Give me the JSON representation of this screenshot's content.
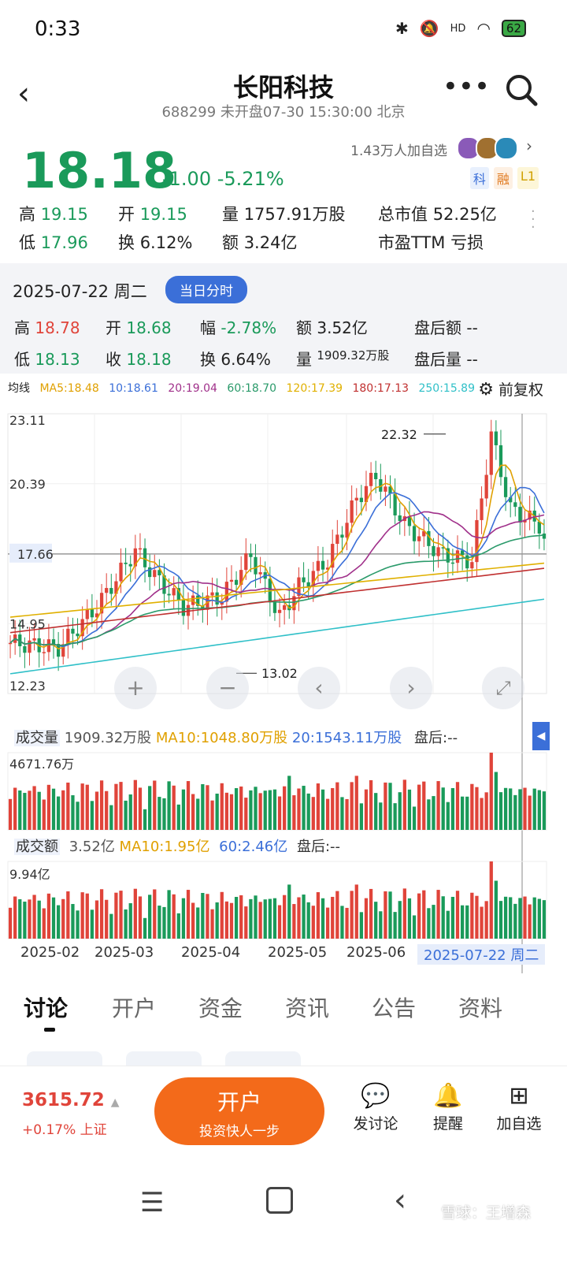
{
  "status_bar": {
    "time": "0:33",
    "battery": "62",
    "network": "HD"
  },
  "header": {
    "title": "长阳科技",
    "subtitle": "688299 未开盘07-30 15:30:00 北京"
  },
  "quote": {
    "price": "18.18",
    "change": "-1.00",
    "change_pct": "-5.21%",
    "watchers": "1.43万人加自选",
    "tags": [
      "科",
      "融",
      "L1"
    ],
    "stats": {
      "high_label": "高",
      "high": "19.15",
      "open_label": "开",
      "open": "19.15",
      "vol_label": "量",
      "vol": "1757.91万股",
      "mcap_label": "总市值",
      "mcap": "52.25亿",
      "low_label": "低",
      "low": "17.96",
      "turnover_label": "换",
      "turnover": "6.12%",
      "amount_label": "额",
      "amount": "3.24亿",
      "pe_label": "市盈TTM",
      "pe": "亏损"
    }
  },
  "day_detail": {
    "date": "2025-07-22 周二",
    "pill": "当日分时",
    "high_label": "高",
    "high": "18.78",
    "open_label": "开",
    "open": "18.68",
    "amp_label": "幅",
    "amp": "-2.78%",
    "amount_label": "额",
    "amount": "3.52亿",
    "ah_amount_label": "盘后额",
    "ah_amount": "--",
    "low_label": "低",
    "low": "18.13",
    "close_label": "收",
    "close": "18.18",
    "turnover_label": "换",
    "turnover": "6.64%",
    "vol_label": "量",
    "vol": "1909.32万股",
    "ah_vol_label": "盘后量",
    "ah_vol": "--"
  },
  "ma_legend": {
    "label": "均线",
    "items": [
      "MA5:18.48",
      "10:18.61",
      "20:19.04",
      "60:18.70",
      "120:17.39",
      "180:17.13",
      "250:15.89"
    ],
    "colors": [
      "#e0a000",
      "#3b6fd8",
      "#a0308a",
      "#2a9a6a",
      "#e0b000",
      "#c03030",
      "#30c0c8"
    ],
    "adjust_button": "前复权"
  },
  "chart_data": {
    "type": "candlestick",
    "y_ticks": [
      "23.11",
      "20.39",
      "17.66",
      "14.95",
      "12.23"
    ],
    "ylim": [
      12.23,
      23.11
    ],
    "current_price_label": "17.66",
    "max_label": "22.32",
    "min_label": "13.02",
    "x_ticks": [
      "2025-02",
      "2025-03",
      "2025-04",
      "2025-05",
      "2025-06"
    ],
    "cursor_date": "2025-07-22 周二",
    "volume": {
      "label": "成交量",
      "value": "1909.32万股",
      "ma10": "MA10:1048.80万股",
      "ma20": "20:1543.11万股",
      "after": "盘后:--",
      "max_label": "4671.76万"
    },
    "amount": {
      "label": "成交额",
      "value": "3.52亿",
      "ma10": "MA10:1.95亿",
      "ma60": "60:2.46亿",
      "after": "盘后:--",
      "max_label": "9.94亿"
    }
  },
  "tabs": [
    "讨论",
    "开户",
    "资金",
    "资讯",
    "公告",
    "资料"
  ],
  "bottom_bar": {
    "index_value": "3615.72",
    "index_change": "+0.17% 上证",
    "open_account": "开户",
    "open_account_sub": "投资快人一步",
    "actions": [
      "发讨论",
      "提醒",
      "加自选"
    ]
  },
  "watermark": "雪球：王增森"
}
